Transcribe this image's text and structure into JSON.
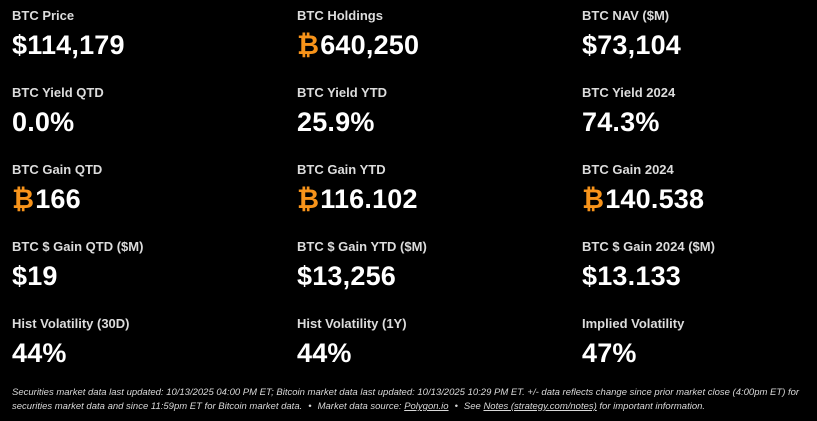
{
  "metrics": [
    [
      {
        "label": "BTC Price",
        "value": "$114,179"
      },
      {
        "label": "BTC Holdings",
        "symbol": "₿",
        "value": "640,250"
      },
      {
        "label": "BTC NAV ($M)",
        "value": "$73,104"
      }
    ],
    [
      {
        "label": "BTC Yield QTD",
        "value": "0.0%"
      },
      {
        "label": "BTC Yield YTD",
        "value": "25.9%"
      },
      {
        "label": "BTC Yield 2024",
        "value": "74.3%"
      }
    ],
    [
      {
        "label": "BTC Gain QTD",
        "symbol": "₿",
        "value": "166"
      },
      {
        "label": "BTC Gain YTD",
        "symbol": "₿",
        "value": "116.102"
      },
      {
        "label": "BTC Gain 2024",
        "symbol": "₿",
        "value": "140.538"
      }
    ],
    [
      {
        "label": "BTC $ Gain QTD ($M)",
        "value": "$19"
      },
      {
        "label": "BTC $ Gain YTD ($M)",
        "value": "$13,256"
      },
      {
        "label": "BTC $ Gain 2024 ($M)",
        "value": "$13.133"
      }
    ],
    [
      {
        "label": "Hist Volatility (30D)",
        "value": "44%"
      },
      {
        "label": "Hist Volatility (1Y)",
        "value": "44%"
      },
      {
        "label": "Implied Volatility",
        "value": "47%"
      }
    ]
  ],
  "footer": {
    "part1": "Securities market data last updated: 10/13/2025 04:00 PM ET; Bitcoin market data last updated: 10/13/2025 10:29 PM ET. +/- data reflects change since prior market close (4:00pm ET) for securities market data and since 11:59pm ET for Bitcoin market data.",
    "bullet": "•",
    "part2": "Market data source:",
    "source_link": "Polygon.io",
    "part3": "See",
    "notes_link": "Notes (strategy.com/notes)",
    "part4": "for important information."
  },
  "colors": {
    "background": "#000000",
    "bitcoin_orange": "#f7931a",
    "text": "#ffffff"
  }
}
